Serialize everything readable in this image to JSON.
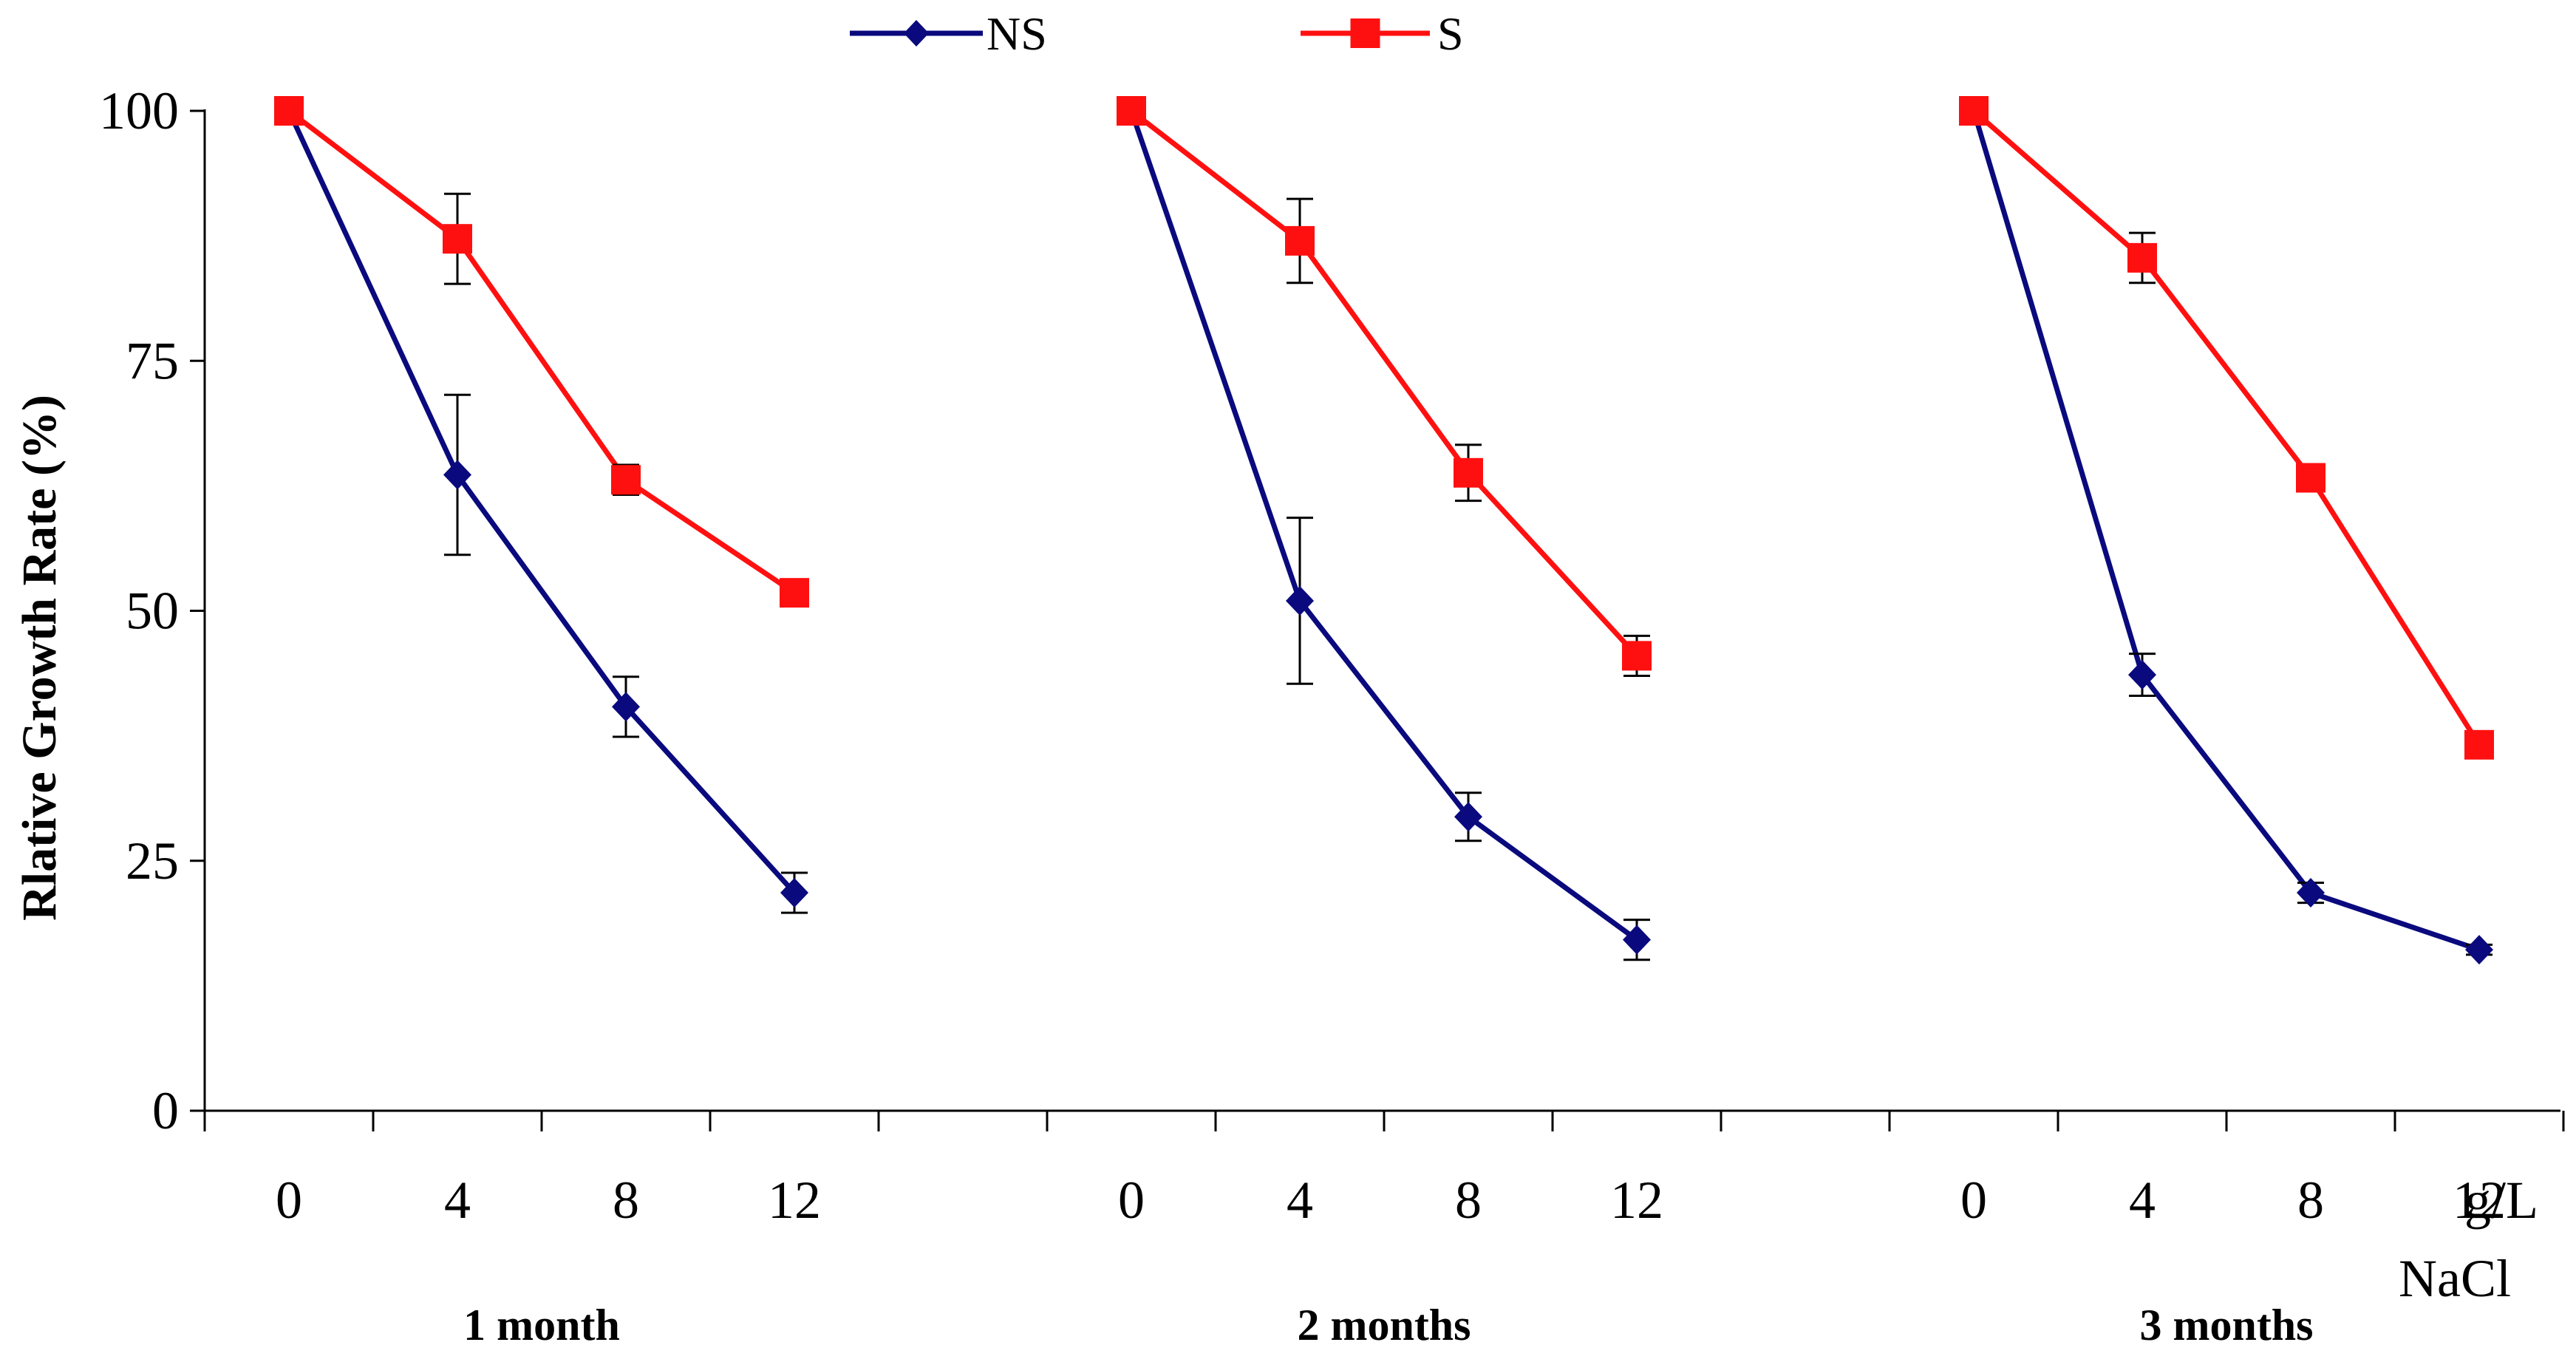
{
  "chart_data": {
    "type": "line",
    "ylabel": "Rlative Growth Rate (%)",
    "ylim": [
      0,
      100
    ],
    "yticks": [
      0,
      25,
      50,
      75,
      100
    ],
    "unit_label_1": "g/L",
    "unit_label_2": "NaCl",
    "legend_position": "top-center",
    "colors": {
      "NS": "#0a0a7e",
      "S": "#ff1010",
      "axis": "#000000",
      "errorbar": "#000000"
    },
    "groups": [
      {
        "label": "1 month",
        "x": [
          "0",
          "4",
          "8",
          "12"
        ],
        "series": [
          {
            "name": "NS",
            "values": [
              100,
              63.6,
              40.4,
              21.8
            ],
            "errors": [
              0,
              8.0,
              3.0,
              2.0
            ]
          },
          {
            "name": "S",
            "values": [
              100,
              87.2,
              63.1,
              51.8
            ],
            "errors": [
              0,
              4.5,
              1.5,
              0.5
            ]
          }
        ]
      },
      {
        "label": "2 months",
        "x": [
          "0",
          "4",
          "8",
          "12"
        ],
        "series": [
          {
            "name": "NS",
            "values": [
              100,
              51.0,
              29.4,
              17.1
            ],
            "errors": [
              0,
              8.3,
              2.4,
              2.0
            ]
          },
          {
            "name": "S",
            "values": [
              100,
              87.0,
              63.8,
              45.5
            ],
            "errors": [
              0,
              4.2,
              2.8,
              2.0
            ]
          }
        ]
      },
      {
        "label": "3 months",
        "x": [
          "0",
          "4",
          "8",
          "12"
        ],
        "series": [
          {
            "name": "NS",
            "values": [
              100,
              43.6,
              21.8,
              16.1
            ],
            "errors": [
              0,
              2.1,
              1.0,
              0.5
            ]
          },
          {
            "name": "S",
            "values": [
              100,
              85.3,
              63.3,
              36.6
            ],
            "errors": [
              0,
              2.5,
              0.5,
              1.0
            ]
          }
        ]
      }
    ]
  }
}
